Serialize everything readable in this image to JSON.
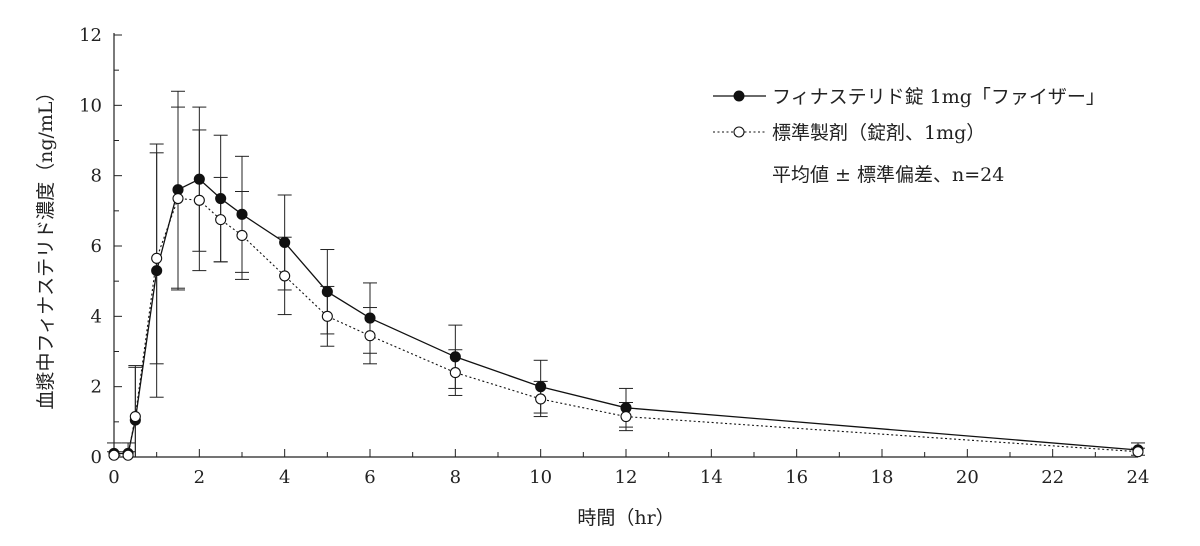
{
  "chart_data": {
    "type": "line",
    "xlabel": "時間（hr）",
    "ylabel": "血漿中フィナステリド濃度（ng/mL）",
    "xlim": [
      0,
      24
    ],
    "ylim": [
      0,
      12
    ],
    "xticks": [
      0,
      2,
      4,
      6,
      8,
      10,
      12,
      14,
      16,
      18,
      20,
      22,
      24
    ],
    "yticks": [
      0,
      2,
      4,
      6,
      8,
      10,
      12
    ],
    "grid": false,
    "legend_position": "top-right",
    "legend_note": "平均値 ± 標準偏差、n=24",
    "series": [
      {
        "name": "フィナステリド錠 1mg「ファイザー」",
        "marker": "filled-circle",
        "line": "solid",
        "color": "#111111",
        "x": [
          0,
          0.33,
          0.5,
          1,
          1.5,
          2,
          2.5,
          3,
          4,
          5,
          6,
          8,
          10,
          12,
          24
        ],
        "y": [
          0.1,
          0.1,
          1.05,
          5.3,
          7.6,
          7.9,
          7.35,
          6.9,
          6.1,
          4.7,
          3.95,
          2.85,
          2.0,
          1.4,
          0.2
        ],
        "err": [
          0.3,
          0.3,
          1.5,
          3.6,
          2.8,
          2.05,
          1.8,
          1.65,
          1.35,
          1.2,
          1.0,
          0.9,
          0.75,
          0.55,
          0.2
        ]
      },
      {
        "name": "標準製剤（錠剤、1mg）",
        "marker": "open-circle",
        "line": "dotted",
        "color": "#111111",
        "x": [
          0,
          0.33,
          0.5,
          1,
          1.5,
          2,
          2.5,
          3,
          4,
          5,
          6,
          8,
          10,
          12,
          24
        ],
        "y": [
          0.05,
          0.05,
          1.15,
          5.65,
          7.35,
          7.3,
          6.75,
          6.3,
          5.15,
          4.0,
          3.45,
          2.4,
          1.65,
          1.15,
          0.15
        ],
        "err": [
          0.1,
          0.1,
          1.45,
          3.0,
          2.6,
          2.0,
          1.2,
          1.25,
          1.1,
          0.85,
          0.8,
          0.65,
          0.5,
          0.4,
          0.1
        ]
      }
    ]
  }
}
